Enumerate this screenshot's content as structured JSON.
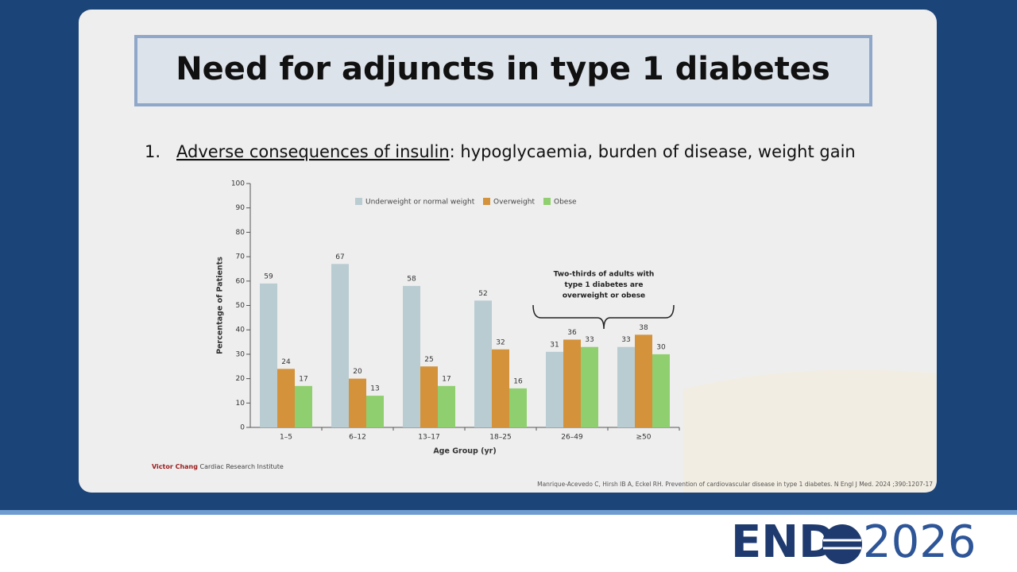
{
  "slide_title": "Need for adjuncts in type 1 diabetes",
  "bullet": {
    "number": "1.",
    "underlined": "Adverse consequences of insulin",
    "rest": ": hypoglycaemia, burden of disease, weight gain"
  },
  "credit": {
    "name": "Victor Chang",
    "rest": "Cardiac Research Institute"
  },
  "citation": "Manrique-Acevedo C, Hirsh IB A, Eckel RH. Prevention of cardiovascular disease in type 1 diabetes. N Engl J Med. 2024 ;390:1207-17",
  "logo": {
    "left": "END",
    "right": "2026"
  },
  "chart_data": {
    "type": "bar",
    "x_label": "Age Group (yr)",
    "y_label": "Percentage of Patients",
    "categories": [
      "1–5",
      "6–12",
      "13–17",
      "18–25",
      "26–49",
      "≥50"
    ],
    "series": [
      {
        "name": "Underweight or normal weight",
        "color": "#b9ccd2",
        "values": [
          59,
          67,
          58,
          52,
          31,
          33
        ]
      },
      {
        "name": "Overweight",
        "color": "#d4923b",
        "values": [
          24,
          20,
          25,
          32,
          36,
          38
        ]
      },
      {
        "name": "Obese",
        "color": "#90cf6f",
        "values": [
          17,
          13,
          17,
          16,
          33,
          30
        ]
      }
    ],
    "ylim": [
      0,
      100
    ],
    "yticks": [
      0,
      10,
      20,
      30,
      40,
      50,
      60,
      70,
      80,
      90,
      100
    ],
    "annotation": [
      "Two-thirds of adults with",
      "type 1 diabetes are",
      "overweight or obese"
    ]
  }
}
